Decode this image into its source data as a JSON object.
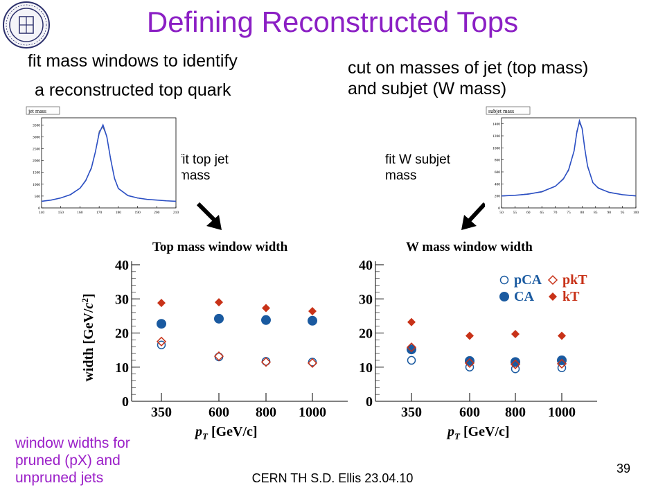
{
  "slide": {
    "title": "Defining Reconstructed Tops",
    "left_text_line1": "fit mass windows to identify",
    "left_text_line2": "a reconstructed top quark",
    "right_text_line1": "cut on masses of jet (top mass)",
    "right_text_line2": "and subjet (W mass)",
    "left_fit_label_line1": "fit top jet",
    "left_fit_label_line2": "mass",
    "right_fit_label_line1": "fit W subjet",
    "right_fit_label_line2": "mass",
    "bottom_note_line1": "window widths for",
    "bottom_note_line2": "pruned (pX) and",
    "bottom_note_line3": "unpruned jets",
    "footer": "CERN TH    S.D. Ellis    23.04.10",
    "page_number": "39",
    "accent_color": "#8b1fc4"
  },
  "chart_data": [
    {
      "type": "line",
      "title": "jet mass",
      "x_ticks": [
        "140",
        "150",
        "160",
        "170",
        "180",
        "190",
        "200",
        "210"
      ],
      "y_ticks": [
        "0",
        "500",
        "1000",
        "1500",
        "2000",
        "2500",
        "3000",
        "3500"
      ],
      "xlim": [
        140,
        210
      ],
      "ylim": [
        0,
        3800
      ],
      "peak": 172,
      "peak_value": 3500,
      "series": [
        {
          "values_x": [
            140,
            145,
            150,
            155,
            160,
            163,
            166,
            168,
            170,
            172,
            174,
            176,
            178,
            180,
            185,
            190,
            195,
            200,
            205,
            210
          ],
          "values_y": [
            280,
            330,
            420,
            560,
            830,
            1150,
            1700,
            2350,
            3150,
            3500,
            3000,
            2050,
            1250,
            820,
            520,
            420,
            360,
            330,
            300,
            280
          ]
        }
      ]
    },
    {
      "type": "line",
      "title": "subjet mass",
      "x_ticks": [
        "50",
        "55",
        "60",
        "65",
        "70",
        "75",
        "80",
        "85",
        "90",
        "95",
        "100"
      ],
      "y_ticks": [
        "0",
        "200",
        "400",
        "600",
        "800",
        "1000",
        "1200",
        "1400"
      ],
      "xlim": [
        50,
        100
      ],
      "ylim": [
        0,
        1500
      ],
      "peak": 79,
      "peak_value": 1450,
      "series": [
        {
          "values_x": [
            50,
            55,
            60,
            65,
            70,
            73,
            75,
            77,
            78,
            79,
            80,
            81,
            82,
            84,
            86,
            90,
            95,
            100
          ],
          "values_y": [
            200,
            210,
            230,
            270,
            360,
            480,
            640,
            950,
            1250,
            1450,
            1320,
            980,
            700,
            420,
            330,
            260,
            220,
            200
          ]
        }
      ]
    },
    {
      "type": "scatter",
      "title": "Top mass window width",
      "xlabel": "p_T [GeV/c]",
      "ylabel": "width [GeV/c^2]",
      "categories": [
        "350",
        "600",
        "800",
        "1000"
      ],
      "ylim": [
        0,
        40
      ],
      "y_ticks": [
        "0",
        "10",
        "20",
        "30",
        "40"
      ],
      "series": [
        {
          "name": "pCA",
          "marker": "open-circle",
          "color": "#1a5aa0",
          "values": [
            16.5,
            13.0,
            11.7,
            11.5
          ]
        },
        {
          "name": "CA",
          "marker": "filled-circle",
          "color": "#1a5aa0",
          "values": [
            22.7,
            24.2,
            23.8,
            23.6
          ]
        },
        {
          "name": "pkT",
          "marker": "open-diamond",
          "color": "#c83218",
          "values": [
            17.5,
            13.2,
            11.5,
            11.2
          ]
        },
        {
          "name": "kT",
          "marker": "filled-diamond",
          "color": "#c83218",
          "values": [
            28.8,
            29.0,
            27.3,
            26.4
          ]
        }
      ]
    },
    {
      "type": "scatter",
      "title": "W mass window width",
      "xlabel": "p_T [GeV/c]",
      "ylabel": "",
      "categories": [
        "350",
        "600",
        "800",
        "1000"
      ],
      "ylim": [
        0,
        40
      ],
      "y_ticks": [
        "0",
        "10",
        "20",
        "30",
        "40"
      ],
      "legend": [
        "pCA",
        "CA",
        "pkT",
        "kT"
      ],
      "legend_placement": "top-right",
      "series": [
        {
          "name": "pCA",
          "marker": "open-circle",
          "color": "#1a5aa0",
          "values": [
            12.0,
            10.0,
            9.5,
            9.8
          ]
        },
        {
          "name": "CA",
          "marker": "filled-circle",
          "color": "#1a5aa0",
          "values": [
            15.2,
            11.8,
            11.5,
            12.0
          ]
        },
        {
          "name": "pkT",
          "marker": "open-diamond",
          "color": "#c83218",
          "values": [
            15.8,
            11.2,
            10.8,
            11.0
          ]
        },
        {
          "name": "kT",
          "marker": "filled-diamond",
          "color": "#c83218",
          "values": [
            23.2,
            19.2,
            19.7,
            19.2
          ]
        }
      ]
    }
  ]
}
